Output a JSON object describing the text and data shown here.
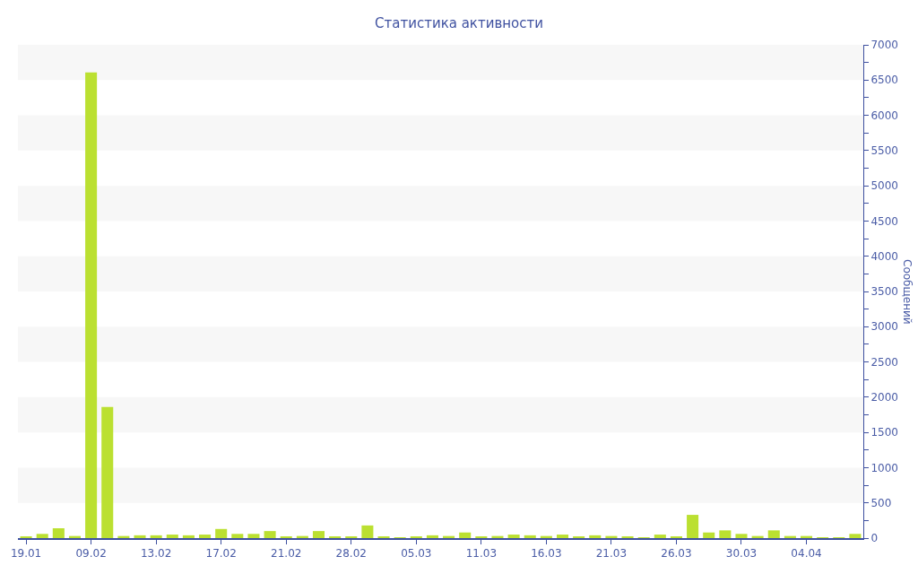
{
  "chart_data": {
    "type": "bar",
    "title": "Статистика активности",
    "ylabel": "Сообщений",
    "categories": [
      "19.01",
      null,
      null,
      null,
      "09.02",
      null,
      null,
      null,
      "13.02",
      null,
      null,
      null,
      "17.02",
      null,
      null,
      null,
      "21.02",
      null,
      null,
      null,
      "28.02",
      null,
      null,
      null,
      "05.03",
      null,
      null,
      null,
      "11.03",
      null,
      null,
      null,
      "16.03",
      null,
      null,
      null,
      "21.03",
      null,
      null,
      null,
      "26.03",
      null,
      null,
      null,
      "30.03",
      null,
      null,
      null,
      "04.04",
      null,
      null,
      null
    ],
    "values": [
      20,
      60,
      140,
      30,
      6610,
      1860,
      30,
      40,
      40,
      50,
      40,
      50,
      130,
      60,
      60,
      100,
      20,
      30,
      100,
      20,
      20,
      180,
      20,
      10,
      20,
      40,
      30,
      80,
      20,
      30,
      50,
      40,
      30,
      50,
      20,
      40,
      30,
      20,
      10,
      50,
      20,
      330,
      80,
      110,
      60,
      30,
      110,
      30,
      30,
      10,
      10,
      60
    ],
    "color": "#bbe031",
    "ylim": [
      0,
      7000
    ],
    "yticks": [
      0,
      {
        "value": 250,
        "label": null
      },
      500,
      {
        "value": 750,
        "label": null
      },
      1000,
      {
        "value": 1250,
        "label": null
      },
      1500,
      {
        "value": 1750,
        "label": null
      },
      2000,
      {
        "value": 2250,
        "label": null
      },
      2500,
      {
        "value": 2750,
        "label": null
      },
      3000,
      {
        "value": 3250,
        "label": null
      },
      3500,
      {
        "value": 3750,
        "label": null
      },
      4000,
      {
        "value": 4250,
        "label": null
      },
      4500,
      {
        "value": 4750,
        "label": null
      },
      5000,
      {
        "value": 5250,
        "label": null
      },
      5500,
      {
        "value": 5750,
        "label": null
      },
      6000,
      {
        "value": 6250,
        "label": null
      },
      6500,
      {
        "value": 6750,
        "label": null
      },
      7000
    ],
    "bands": [
      {
        "axis": "y",
        "from": 500,
        "to": 1000,
        "color": "#f7f7f7"
      },
      {
        "axis": "y",
        "from": 1500,
        "to": 2000,
        "color": "#f7f7f7"
      },
      {
        "axis": "y",
        "from": 2500,
        "to": 3000,
        "color": "#f7f7f7"
      },
      {
        "axis": "y",
        "from": 3500,
        "to": 4000,
        "color": "#f7f7f7"
      },
      {
        "axis": "y",
        "from": 4500,
        "to": 5000,
        "color": "#f7f7f7"
      },
      {
        "axis": "y",
        "from": 5500,
        "to": 6000,
        "color": "#f7f7f7"
      },
      {
        "axis": "y",
        "from": 6500,
        "to": 7000,
        "color": "#f7f7f7"
      }
    ]
  }
}
